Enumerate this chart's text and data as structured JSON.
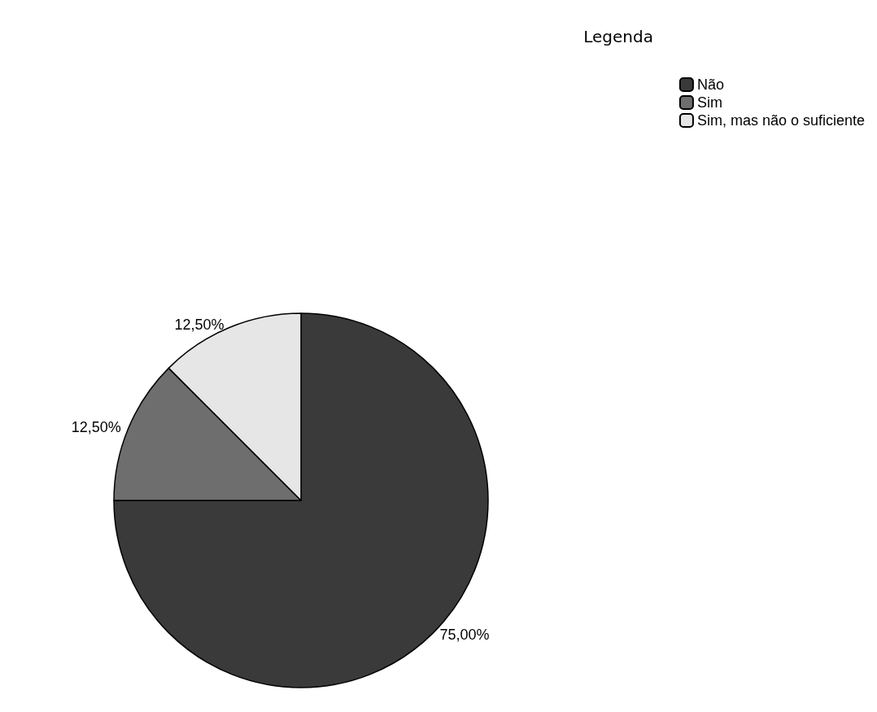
{
  "chart_data": {
    "type": "pie",
    "legend_title": "Legenda",
    "legend": "top right",
    "categories": [
      "Não",
      "Sim",
      "Sim, mas não o suficiente"
    ],
    "values": [
      75,
      12.5,
      12.5
    ],
    "colors": [
      "#3a3a3a",
      "#6e6e6e",
      "#e6e6e6"
    ],
    "value_labels": [
      "75,00%",
      "12,50%",
      "12,50%"
    ]
  }
}
